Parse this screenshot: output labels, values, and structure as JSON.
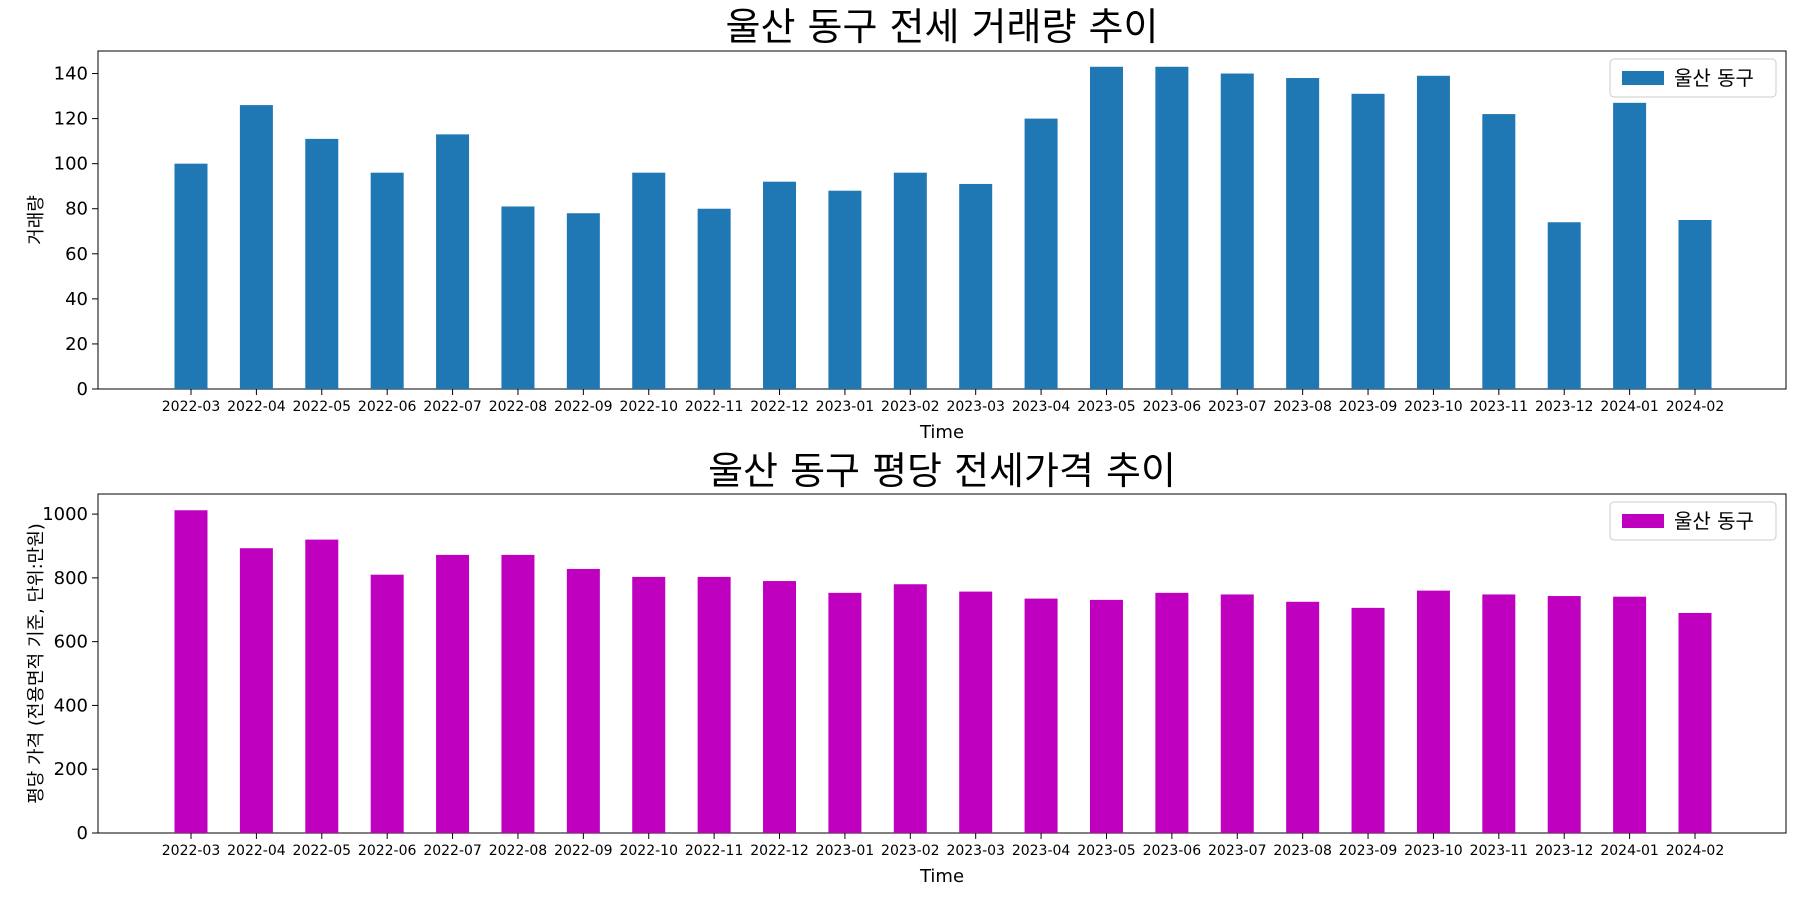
{
  "chart_data": [
    {
      "type": "bar",
      "title": "울산 동구 전세 거래량 추이",
      "xlabel": "Time",
      "ylabel": "거래량",
      "categories": [
        "2022-03",
        "2022-04",
        "2022-05",
        "2022-06",
        "2022-07",
        "2022-08",
        "2022-09",
        "2022-10",
        "2022-11",
        "2022-12",
        "2023-01",
        "2023-02",
        "2023-03",
        "2023-04",
        "2023-05",
        "2023-06",
        "2023-07",
        "2023-08",
        "2023-09",
        "2023-10",
        "2023-11",
        "2023-12",
        "2024-01",
        "2024-02"
      ],
      "series": [
        {
          "name": "울산 동구",
          "color": "#1f77b4",
          "values": [
            100,
            126,
            111,
            96,
            113,
            81,
            78,
            96,
            80,
            92,
            88,
            96,
            91,
            120,
            143,
            143,
            140,
            138,
            131,
            139,
            122,
            74,
            127,
            75
          ]
        }
      ],
      "ylim": [
        0,
        150
      ],
      "yticks": [
        0,
        20,
        40,
        60,
        80,
        100,
        120,
        140
      ],
      "grid": false,
      "legend": "top-right"
    },
    {
      "type": "bar",
      "title": "울산 동구 평당 전세가격 추이",
      "xlabel": "Time",
      "ylabel": "평당 가격 (전용면적 기준, 단위:만원)",
      "categories": [
        "2022-03",
        "2022-04",
        "2022-05",
        "2022-06",
        "2022-07",
        "2022-08",
        "2022-09",
        "2022-10",
        "2022-11",
        "2022-12",
        "2023-01",
        "2023-02",
        "2023-03",
        "2023-04",
        "2023-05",
        "2023-06",
        "2023-07",
        "2023-08",
        "2023-09",
        "2023-10",
        "2023-11",
        "2023-12",
        "2024-01",
        "2024-02"
      ],
      "series": [
        {
          "name": "울산 동구",
          "color": "#bf00bf",
          "values": [
            1012,
            893,
            920,
            810,
            872,
            872,
            828,
            803,
            803,
            790,
            753,
            780,
            757,
            735,
            731,
            753,
            748,
            725,
            706,
            760,
            748,
            743,
            741,
            690
          ]
        }
      ],
      "ylim": [
        0,
        1063
      ],
      "yticks": [
        0,
        200,
        400,
        600,
        800,
        1000
      ],
      "grid": false,
      "legend": "top-right"
    }
  ]
}
